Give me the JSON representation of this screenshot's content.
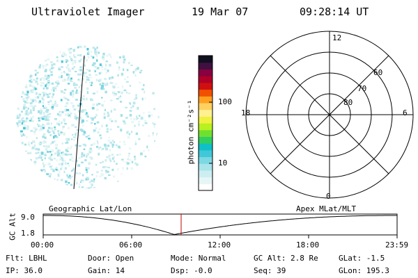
{
  "header": {
    "title": "Ultraviolet Imager",
    "date": "19 Mar 07",
    "time": "09:28:14 UT"
  },
  "colorbar": {
    "unit_label": "photon cm⁻²s⁻¹",
    "ticks": [
      "100",
      "10"
    ],
    "colors": [
      "#ffffff",
      "#e6f6f6",
      "#cdeef0",
      "#a8e4ea",
      "#7cd8e2",
      "#40c8d8",
      "#10c0c8",
      "#30d060",
      "#70e030",
      "#b8f020",
      "#f0f040",
      "#fff090",
      "#ffd060",
      "#ffa020",
      "#f05000",
      "#d01010",
      "#b00028",
      "#880040",
      "#401040",
      "#101020"
    ]
  },
  "polar": {
    "labels": {
      "top": "12",
      "bottom": "0",
      "left": "18",
      "right": "6"
    },
    "ring_labels": [
      "80",
      "70",
      "60"
    ]
  },
  "timeline": {
    "left_label": "Geographic Lat/Lon",
    "right_label": "Apex MLat/MLT",
    "y_axis_label": "GC Alt",
    "y_ticks": [
      "9.0",
      "1.8"
    ],
    "x_ticks": [
      "00:00",
      "06:00",
      "12:00",
      "18:00",
      "23:59"
    ]
  },
  "info": {
    "flt": "Flt: LBHL",
    "ip": "IP: 36.0",
    "door": "Door: Open",
    "gain": "Gain: 14",
    "mode": "Mode: Normal",
    "dsp": "Dsp:   -0.0",
    "gcalt": "GC Alt: 2.8 Re",
    "seq": "Seq: 39",
    "glat": "GLat:  -1.5",
    "glon": "GLon: 195.3"
  }
}
